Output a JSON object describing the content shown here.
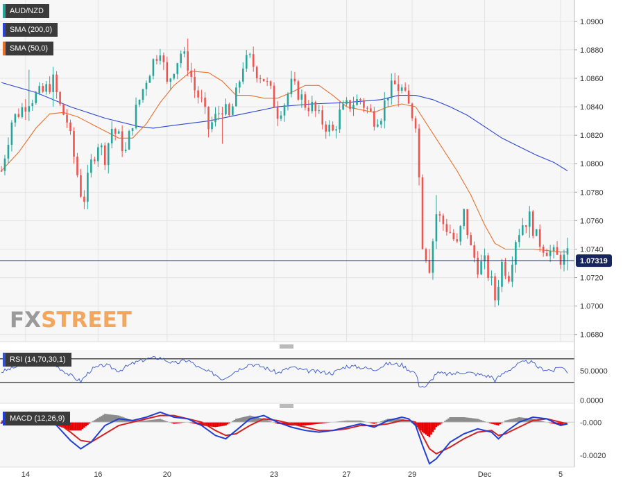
{
  "legend": {
    "symbol": "AUD/NZD",
    "sma200": "SMA (200,0)",
    "sma50": "SMA (50,0)",
    "rsi": "RSI (14,70,30,1)",
    "macd": "MACD (12,26,9)"
  },
  "logo": {
    "part1": "FX",
    "part2": "STREET"
  },
  "colors": {
    "up": "#26a69a",
    "down": "#ef5350",
    "sma200": "#2b45d4",
    "sma50": "#e8702a",
    "macd_line": "#1e3fd6",
    "signal_line": "#d42020",
    "hist_pos": "#8c8c8c",
    "hist_neg": "#e60000",
    "rsi_line": "#3355cc"
  },
  "chart_data": [
    {
      "type": "candlestick",
      "symbol": "AUD/NZD",
      "x_ticks": [
        "14",
        "16",
        "20",
        "23",
        "27",
        "29",
        "Dec",
        "5"
      ],
      "y_ticks": [
        "1.0900",
        "1.0880",
        "1.0860",
        "1.0840",
        "1.0820",
        "1.0800",
        "1.0780",
        "1.0760",
        "1.0740",
        "1.0720",
        "1.0700",
        "1.0680"
      ],
      "ylim": [
        1.0675,
        1.0915
      ],
      "current_price": 1.07319,
      "current_price_label": "1.07319",
      "close_path": [
        [
          0,
          1.0795
        ],
        [
          3,
          1.083
        ],
        [
          8,
          1.0845
        ],
        [
          12,
          1.085
        ],
        [
          15,
          1.0858
        ],
        [
          17,
          1.084
        ],
        [
          19,
          1.083
        ],
        [
          21,
          1.0805
        ],
        [
          23,
          1.078
        ],
        [
          24,
          1.0776
        ],
        [
          26,
          1.08
        ],
        [
          28,
          1.0815
        ],
        [
          30,
          1.0805
        ],
        [
          32,
          1.0825
        ],
        [
          34,
          1.0818
        ],
        [
          36,
          1.0808
        ],
        [
          38,
          1.083
        ],
        [
          40,
          1.0845
        ],
        [
          42,
          1.086
        ],
        [
          44,
          1.0872
        ],
        [
          46,
          1.0882
        ],
        [
          48,
          1.0855
        ],
        [
          50,
          1.0868
        ],
        [
          52,
          1.0878
        ],
        [
          54,
          1.087
        ],
        [
          56,
          1.0852
        ],
        [
          58,
          1.0843
        ],
        [
          60,
          1.0825
        ],
        [
          62,
          1.0832
        ],
        [
          64,
          1.084
        ],
        [
          66,
          1.0832
        ],
        [
          68,
          1.0848
        ],
        [
          70,
          1.087
        ],
        [
          72,
          1.0873
        ],
        [
          74,
          1.0865
        ],
        [
          76,
          1.086
        ],
        [
          78,
          1.085
        ],
        [
          80,
          1.0836
        ],
        [
          82,
          1.0843
        ],
        [
          84,
          1.0855
        ],
        [
          86,
          1.085
        ],
        [
          88,
          1.0842
        ],
        [
          90,
          1.084
        ],
        [
          92,
          1.0832
        ],
        [
          94,
          1.0827
        ],
        [
          96,
          1.0822
        ],
        [
          98,
          1.0835
        ],
        [
          100,
          1.084
        ],
        [
          102,
          1.0843
        ],
        [
          104,
          1.0845
        ],
        [
          106,
          1.0838
        ],
        [
          108,
          1.0832
        ],
        [
          110,
          1.0835
        ],
        [
          112,
          1.085
        ],
        [
          114,
          1.0855
        ],
        [
          116,
          1.0852
        ],
        [
          118,
          1.084
        ],
        [
          120,
          1.083
        ],
        [
          121,
          1.079
        ],
        [
          122,
          1.0745
        ],
        [
          124,
          1.0728
        ],
        [
          126,
          1.0765
        ],
        [
          128,
          1.0758
        ],
        [
          130,
          1.0752
        ],
        [
          132,
          1.0742
        ],
        [
          134,
          1.0765
        ],
        [
          136,
          1.074
        ],
        [
          138,
          1.0728
        ],
        [
          140,
          1.073
        ],
        [
          142,
          1.0716
        ],
        [
          143,
          1.0705
        ],
        [
          145,
          1.073
        ],
        [
          147,
          1.0722
        ],
        [
          149,
          1.0748
        ],
        [
          151,
          1.0758
        ],
        [
          153,
          1.0762
        ],
        [
          155,
          1.0748
        ],
        [
          157,
          1.0742
        ],
        [
          159,
          1.0738
        ],
        [
          161,
          1.0734
        ],
        [
          163,
          1.0733
        ],
        [
          164,
          1.0735
        ]
      ],
      "sma200_path": [
        [
          0,
          1.0857
        ],
        [
          10,
          1.085
        ],
        [
          20,
          1.084
        ],
        [
          30,
          1.0832
        ],
        [
          40,
          1.0826
        ],
        [
          44,
          1.0825
        ],
        [
          50,
          1.0827
        ],
        [
          60,
          1.083
        ],
        [
          70,
          1.0835
        ],
        [
          80,
          1.084
        ],
        [
          90,
          1.0842
        ],
        [
          100,
          1.0843
        ],
        [
          110,
          1.0845
        ],
        [
          115,
          1.0848
        ],
        [
          120,
          1.0848
        ],
        [
          125,
          1.0845
        ],
        [
          130,
          1.084
        ],
        [
          135,
          1.0834
        ],
        [
          140,
          1.0826
        ],
        [
          145,
          1.0818
        ],
        [
          150,
          1.0812
        ],
        [
          155,
          1.0806
        ],
        [
          160,
          1.0801
        ],
        [
          164,
          1.0795
        ]
      ],
      "sma50_path": [
        [
          0,
          1.0795
        ],
        [
          5,
          1.0808
        ],
        [
          10,
          1.0825
        ],
        [
          14,
          1.0835
        ],
        [
          18,
          1.0836
        ],
        [
          22,
          1.0833
        ],
        [
          26,
          1.0828
        ],
        [
          30,
          1.0823
        ],
        [
          34,
          1.0818
        ],
        [
          38,
          1.0818
        ],
        [
          42,
          1.0828
        ],
        [
          46,
          1.0843
        ],
        [
          50,
          1.0855
        ],
        [
          55,
          1.0865
        ],
        [
          60,
          1.0864
        ],
        [
          64,
          1.0858
        ],
        [
          68,
          1.0848
        ],
        [
          72,
          1.0848
        ],
        [
          76,
          1.0846
        ],
        [
          80,
          1.0846
        ],
        [
          84,
          1.085
        ],
        [
          88,
          1.0855
        ],
        [
          92,
          1.0855
        ],
        [
          96,
          1.0848
        ],
        [
          100,
          1.084
        ],
        [
          104,
          1.0838
        ],
        [
          108,
          1.0836
        ],
        [
          112,
          1.084
        ],
        [
          116,
          1.0842
        ],
        [
          120,
          1.084
        ],
        [
          124,
          1.0825
        ],
        [
          128,
          1.081
        ],
        [
          132,
          1.0795
        ],
        [
          136,
          1.0778
        ],
        [
          140,
          1.0757
        ],
        [
          143,
          1.0744
        ],
        [
          146,
          1.074
        ],
        [
          150,
          1.074
        ],
        [
          154,
          1.074
        ],
        [
          158,
          1.0739
        ],
        [
          162,
          1.0738
        ],
        [
          164,
          1.0738
        ]
      ],
      "spikes": [
        {
          "x": 8,
          "high": 1.0866,
          "low": 1.083
        },
        {
          "x": 15,
          "high": 1.0868,
          "low": 1.084
        },
        {
          "x": 54,
          "high": 1.0888,
          "low": 1.0862
        },
        {
          "x": 64,
          "high": 1.084,
          "low": 1.0814
        },
        {
          "x": 115,
          "high": 1.0862,
          "low": 1.084
        },
        {
          "x": 126,
          "high": 1.0778,
          "low": 1.0752
        },
        {
          "x": 143,
          "high": 1.072,
          "low": 1.0702
        },
        {
          "x": 124,
          "high": 1.074,
          "low": 1.0724
        },
        {
          "x": 153,
          "high": 1.0768,
          "low": 1.0748
        },
        {
          "x": 164,
          "high": 1.0748,
          "low": 1.0725
        }
      ]
    },
    {
      "type": "line",
      "name": "RSI (14,70,30,1)",
      "y_ticks": [
        "50.0000",
        "0.0000"
      ],
      "upper_level": 70,
      "lower_level": 30,
      "ylim": [
        -5,
        85
      ],
      "path": [
        [
          0,
          48
        ],
        [
          6,
          60
        ],
        [
          12,
          64
        ],
        [
          16,
          58
        ],
        [
          20,
          42
        ],
        [
          23,
          32
        ],
        [
          26,
          52
        ],
        [
          30,
          60
        ],
        [
          34,
          50
        ],
        [
          38,
          62
        ],
        [
          42,
          70
        ],
        [
          46,
          72
        ],
        [
          50,
          62
        ],
        [
          54,
          68
        ],
        [
          58,
          52
        ],
        [
          62,
          44
        ],
        [
          64,
          36
        ],
        [
          68,
          50
        ],
        [
          72,
          62
        ],
        [
          76,
          56
        ],
        [
          80,
          46
        ],
        [
          84,
          56
        ],
        [
          88,
          50
        ],
        [
          92,
          48
        ],
        [
          96,
          46
        ],
        [
          100,
          58
        ],
        [
          104,
          56
        ],
        [
          108,
          52
        ],
        [
          112,
          62
        ],
        [
          116,
          60
        ],
        [
          118,
          52
        ],
        [
          120,
          46
        ],
        [
          121,
          26
        ],
        [
          123,
          22
        ],
        [
          126,
          46
        ],
        [
          130,
          44
        ],
        [
          134,
          48
        ],
        [
          138,
          44
        ],
        [
          142,
          40
        ],
        [
          143,
          34
        ],
        [
          146,
          48
        ],
        [
          150,
          62
        ],
        [
          153,
          66
        ],
        [
          156,
          54
        ],
        [
          160,
          50
        ],
        [
          162,
          58
        ],
        [
          164,
          48
        ]
      ]
    },
    {
      "type": "line",
      "name": "MACD (12,26,9)",
      "y_ticks": [
        "-0.000",
        "-0.0020"
      ],
      "ylim": [
        -0.0027,
        0.0008
      ],
      "macd_path": [
        [
          0,
          -5e-05
        ],
        [
          4,
          0.0005
        ],
        [
          8,
          0.0006
        ],
        [
          12,
          0.0003
        ],
        [
          16,
          -0.0002
        ],
        [
          20,
          -0.0011
        ],
        [
          23,
          -0.0016
        ],
        [
          26,
          -0.0012
        ],
        [
          30,
          -0.0002
        ],
        [
          34,
          0.0002
        ],
        [
          38,
          0.0001
        ],
        [
          42,
          0.0003
        ],
        [
          46,
          0.0006
        ],
        [
          50,
          0.0003
        ],
        [
          54,
          0.0002
        ],
        [
          58,
          -0.0002
        ],
        [
          62,
          -0.0008
        ],
        [
          65,
          -0.001
        ],
        [
          68,
          -0.0005
        ],
        [
          72,
          0.0002
        ],
        [
          76,
          0.0004
        ],
        [
          80,
          0.0
        ],
        [
          84,
          -0.0003
        ],
        [
          88,
          -0.0005
        ],
        [
          92,
          -0.0006
        ],
        [
          96,
          -0.0005
        ],
        [
          100,
          -0.0003
        ],
        [
          104,
          -0.0001
        ],
        [
          108,
          -0.0003
        ],
        [
          112,
          0.0001
        ],
        [
          116,
          0.0003
        ],
        [
          118,
          0.0002
        ],
        [
          120,
          -0.0002
        ],
        [
          122,
          -0.0014
        ],
        [
          124,
          -0.0025
        ],
        [
          126,
          -0.0022
        ],
        [
          130,
          -0.0012
        ],
        [
          134,
          -0.0007
        ],
        [
          138,
          -0.0004
        ],
        [
          142,
          -0.0006
        ],
        [
          144,
          -0.001
        ],
        [
          146,
          -0.0006
        ],
        [
          150,
          0.0
        ],
        [
          154,
          0.0003
        ],
        [
          158,
          0.0002
        ],
        [
          162,
          -0.0002
        ],
        [
          164,
          -0.0001
        ]
      ],
      "signal_path": [
        [
          0,
          5e-05
        ],
        [
          4,
          0.0003
        ],
        [
          8,
          0.0005
        ],
        [
          12,
          0.0004
        ],
        [
          16,
          0.0
        ],
        [
          20,
          -0.0006
        ],
        [
          23,
          -0.0011
        ],
        [
          26,
          -0.0012
        ],
        [
          30,
          -0.0007
        ],
        [
          34,
          -0.0002
        ],
        [
          38,
          0.0
        ],
        [
          42,
          0.0002
        ],
        [
          46,
          0.0004
        ],
        [
          50,
          0.0004
        ],
        [
          54,
          0.0002
        ],
        [
          58,
          -0.0
        ],
        [
          62,
          -0.0005
        ],
        [
          65,
          -0.0008
        ],
        [
          68,
          -0.0007
        ],
        [
          72,
          -0.0002
        ],
        [
          76,
          0.0002
        ],
        [
          80,
          0.0001
        ],
        [
          84,
          -0.0001
        ],
        [
          88,
          -0.0003
        ],
        [
          92,
          -0.0005
        ],
        [
          96,
          -0.0005
        ],
        [
          100,
          -0.0004
        ],
        [
          104,
          -0.0002
        ],
        [
          108,
          -0.0002
        ],
        [
          112,
          -0.0001
        ],
        [
          116,
          0.0001
        ],
        [
          118,
          0.0001
        ],
        [
          120,
          0.0
        ],
        [
          122,
          -0.0008
        ],
        [
          124,
          -0.0016
        ],
        [
          126,
          -0.0019
        ],
        [
          130,
          -0.0015
        ],
        [
          134,
          -0.001
        ],
        [
          138,
          -0.0006
        ],
        [
          142,
          -0.0005
        ],
        [
          144,
          -0.0008
        ],
        [
          146,
          -0.0007
        ],
        [
          150,
          -0.0003
        ],
        [
          154,
          0.0001
        ],
        [
          158,
          0.0002
        ],
        [
          162,
          0.0
        ],
        [
          164,
          -0.0001
        ]
      ]
    }
  ]
}
